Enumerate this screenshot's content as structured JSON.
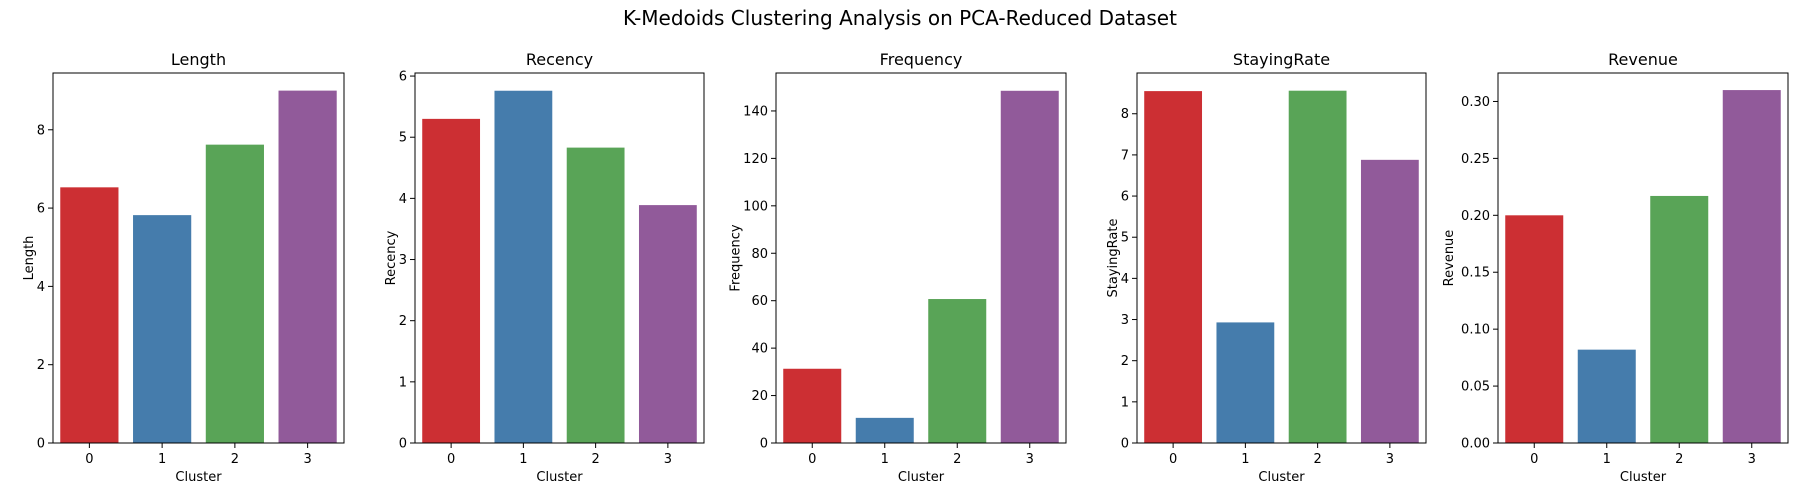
{
  "figure_title": "K-Medoids Clustering Analysis on PCA-Reduced Dataset",
  "colors": [
    "#CC2F33",
    "#457CAC",
    "#59A457",
    "#915A9A"
  ],
  "chart_data": [
    {
      "type": "bar",
      "title": "Length",
      "xlabel": "Cluster",
      "ylabel": "Length",
      "categories": [
        "0",
        "1",
        "2",
        "3"
      ],
      "values": [
        6.53,
        5.82,
        7.62,
        9.0
      ],
      "ylim": [
        0,
        9.45
      ],
      "yticks": [
        0,
        2,
        4,
        6,
        8
      ],
      "ytick_labels": [
        "0",
        "2",
        "4",
        "6",
        "8"
      ],
      "grid": false
    },
    {
      "type": "bar",
      "title": "Recency",
      "xlabel": "Cluster",
      "ylabel": "Recency",
      "categories": [
        "0",
        "1",
        "2",
        "3"
      ],
      "values": [
        5.3,
        5.76,
        4.83,
        3.89
      ],
      "ylim": [
        0,
        6.05
      ],
      "yticks": [
        0,
        1,
        2,
        3,
        4,
        5,
        6
      ],
      "ytick_labels": [
        "0",
        "1",
        "2",
        "3",
        "4",
        "5",
        "6"
      ],
      "grid": false
    },
    {
      "type": "bar",
      "title": "Frequency",
      "xlabel": "Cluster",
      "ylabel": "Frequency",
      "categories": [
        "0",
        "1",
        "2",
        "3"
      ],
      "values": [
        31.3,
        10.6,
        60.7,
        148.5
      ],
      "ylim": [
        0,
        156
      ],
      "yticks": [
        0,
        20,
        40,
        60,
        80,
        100,
        120,
        140
      ],
      "ytick_labels": [
        "0",
        "20",
        "40",
        "60",
        "80",
        "100",
        "120",
        "140"
      ],
      "grid": false
    },
    {
      "type": "bar",
      "title": "StayingRate",
      "xlabel": "Cluster",
      "ylabel": "StayingRate",
      "categories": [
        "0",
        "1",
        "2",
        "3"
      ],
      "values": [
        8.55,
        2.93,
        8.56,
        6.88
      ],
      "ylim": [
        0,
        8.99
      ],
      "yticks": [
        0,
        1,
        2,
        3,
        4,
        5,
        6,
        7,
        8
      ],
      "ytick_labels": [
        "0",
        "1",
        "2",
        "3",
        "4",
        "5",
        "6",
        "7",
        "8"
      ],
      "grid": false
    },
    {
      "type": "bar",
      "title": "Revenue",
      "xlabel": "Cluster",
      "ylabel": "Revenue",
      "categories": [
        "0",
        "1",
        "2",
        "3"
      ],
      "values": [
        0.2,
        0.082,
        0.217,
        0.31
      ],
      "ylim": [
        0,
        0.325
      ],
      "yticks": [
        0,
        0.05,
        0.1,
        0.15,
        0.2,
        0.25,
        0.3
      ],
      "ytick_labels": [
        "0.00",
        "0.05",
        "0.10",
        "0.15",
        "0.20",
        "0.25",
        "0.30"
      ],
      "grid": false
    }
  ]
}
